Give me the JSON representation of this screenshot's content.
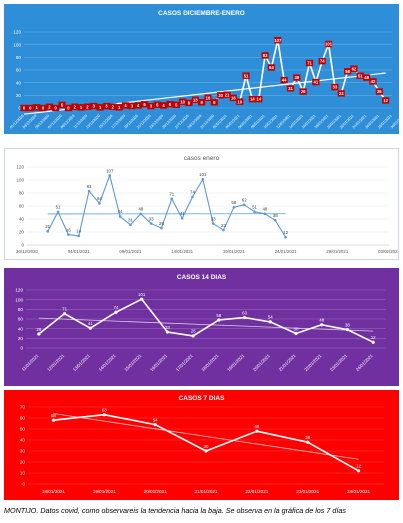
{
  "caption": "MONTIJO. Datos covid, como observareis la tendencia hacia la baja. Se observa en la gráfica de los 7 días",
  "chart_data": [
    {
      "type": "line",
      "title": "CASOS DICIEMBRE-ENERO",
      "background": "#2e8fd8",
      "line_color": "#ffffff",
      "label_bg": "#c00000",
      "label_text": "#ffffff",
      "trendline": true,
      "grid": true,
      "ylim": [
        0,
        120
      ],
      "yticks": [
        0,
        20,
        40,
        60,
        80,
        100,
        120
      ],
      "x_range": [
        0,
        58
      ],
      "x_tick_labels": [
        "01/12/2020",
        "03/12/2020",
        "05/12/2020",
        "07/12/2020",
        "09/12/2020",
        "11/12/2020",
        "13/12/2020",
        "15/12/2020",
        "17/12/2020",
        "19/12/2020",
        "21/12/2020",
        "23/12/2020",
        "25/12/2020",
        "27/12/2020",
        "29/12/2020",
        "31/12/2020",
        "02/01/2021",
        "04/01/2021",
        "06/01/2021",
        "08/01/2021",
        "10/01/2021",
        "12/01/2021",
        "14/01/2021",
        "16/01/2021",
        "18/01/2021",
        "20/01/2021",
        "22/01/2021",
        "24/01/2021",
        "26/01/2021",
        "28/01/2021",
        "30/01/2021"
      ],
      "series": [
        {
          "values": [
            0,
            0,
            1,
            0,
            2,
            0,
            5,
            0,
            2,
            1,
            2,
            3,
            1,
            3,
            2,
            1,
            4,
            3,
            4,
            6,
            3,
            5,
            4,
            6,
            5,
            10,
            8,
            13,
            9,
            16,
            9,
            20,
            21,
            16,
            10,
            51,
            14,
            14,
            83,
            64,
            107,
            44,
            31,
            48,
            26,
            71,
            41,
            74,
            101,
            33,
            23,
            58,
            62,
            51,
            48,
            42,
            26,
            12
          ]
        }
      ]
    },
    {
      "type": "line",
      "title": "casos enero",
      "background": "#ffffff",
      "line_color": "#5b9bd5",
      "trendline": true,
      "grid": true,
      "ylim": [
        0,
        120
      ],
      "yticks": [
        0,
        20,
        40,
        60,
        80,
        100,
        120
      ],
      "x_range": [
        "30/12/2020",
        "03/02/2021"
      ],
      "x_tick_labels": [
        "30/12/2020",
        "04/01/2021",
        "09/01/2021",
        "14/01/2021",
        "19/01/2021",
        "24/01/2021",
        "29/01/2021",
        "03/02/2021"
      ],
      "series": [
        {
          "x": [
            "01/01/2021",
            "02/01/2021",
            "03/01/2021",
            "04/01/2021",
            "05/01/2021",
            "06/01/2021",
            "07/01/2021",
            "08/01/2021",
            "09/01/2021",
            "10/01/2021",
            "11/01/2021",
            "12/01/2021",
            "13/01/2021",
            "14/01/2021",
            "15/01/2021",
            "16/01/2021",
            "17/01/2021",
            "18/01/2021",
            "19/01/2021",
            "20/01/2021",
            "21/01/2021",
            "22/01/2021",
            "23/01/2021",
            "24/01/2021"
          ],
          "values": [
            21,
            51,
            16,
            14,
            83,
            64,
            107,
            44,
            31,
            48,
            33,
            26,
            71,
            41,
            74,
            101,
            33,
            23,
            58,
            62,
            51,
            48,
            38,
            12
          ]
        }
      ]
    },
    {
      "type": "line",
      "title": "CASOS 14 DIAS",
      "background": "#7030a0",
      "line_color": "#ffffff",
      "trendline": true,
      "grid": true,
      "ylim": [
        0,
        120
      ],
      "yticks": [
        0,
        20,
        40,
        60,
        80,
        100,
        120
      ],
      "categories": [
        "11/01/2021",
        "12/01/2021",
        "13/01/2021",
        "14/01/2021",
        "15/01/2021",
        "16/01/2021",
        "17/01/2021",
        "18/01/2021",
        "19/01/2021",
        "20/01/2021",
        "21/01/2021",
        "22/01/2021",
        "23/01/2021",
        "24/01/2021"
      ],
      "series": [
        {
          "values": [
            29,
            71,
            41,
            74,
            101,
            33,
            25,
            58,
            63,
            54,
            30,
            48,
            38,
            12
          ]
        }
      ]
    },
    {
      "type": "line",
      "title": "CASOS 7 DIAS",
      "background": "#ff0000",
      "line_color": "#ffffff",
      "trendline": true,
      "grid": true,
      "ylim": [
        0,
        70
      ],
      "yticks": [
        0,
        10,
        20,
        30,
        40,
        50,
        60,
        70
      ],
      "categories": [
        "18/01/2021",
        "19/01/2021",
        "20/01/2021",
        "21/01/2021",
        "22/01/2021",
        "23/01/2021",
        "24/01/2021"
      ],
      "series": [
        {
          "values": [
            58,
            63,
            54,
            30,
            48,
            38,
            12
          ]
        }
      ]
    }
  ]
}
